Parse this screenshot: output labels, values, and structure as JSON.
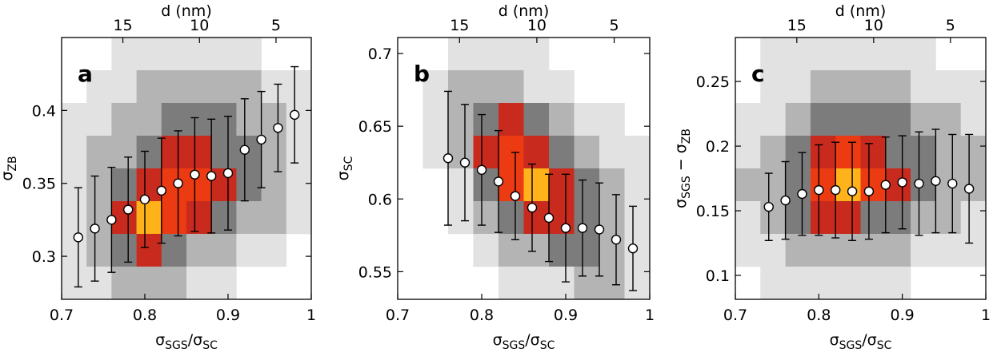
{
  "chart_data": [
    {
      "type": "scatter",
      "panel_label": "a",
      "x": [
        0.72,
        0.74,
        0.76,
        0.78,
        0.8,
        0.82,
        0.84,
        0.86,
        0.88,
        0.9,
        0.92,
        0.94,
        0.96,
        0.98
      ],
      "values": [
        0.313,
        0.319,
        0.325,
        0.332,
        0.339,
        0.345,
        0.35,
        0.356,
        0.355,
        0.357,
        0.373,
        0.38,
        0.388,
        0.397
      ],
      "errors": [
        0.034,
        0.036,
        0.036,
        0.036,
        0.033,
        0.036,
        0.036,
        0.039,
        0.039,
        0.039,
        0.035,
        0.033,
        0.03,
        0.033
      ],
      "color": "#000000",
      "marker_fill": "#ffffff",
      "xlim": [
        0.7,
        1
      ],
      "xticks": [
        0.7,
        0.8,
        0.9,
        1
      ],
      "ylim": [
        0.2705,
        0.45
      ],
      "yticks": [
        0.3,
        0.35,
        0.4
      ],
      "x2lim": [
        19,
        2.7
      ],
      "x2ticks": [
        15,
        10,
        5
      ],
      "x2label": "d (nm)",
      "xlabel": [
        "σ",
        "SGS",
        "/σ",
        "SC"
      ],
      "ylabel": [
        "σ",
        "ZB"
      ],
      "cmap": [
        "#ffffff",
        "#e2e2e2",
        "#b4b4b4",
        "#7c7c7c",
        "#c82a1e",
        "#ec3a12",
        "#ffb21a"
      ],
      "density": [
        [
          0,
          0,
          1,
          1,
          1,
          1,
          1,
          1,
          0,
          0
        ],
        [
          0,
          1,
          1,
          2,
          2,
          2,
          2,
          2,
          1,
          1
        ],
        [
          1,
          1,
          2,
          2,
          3,
          3,
          3,
          2,
          2,
          1
        ],
        [
          1,
          2,
          2,
          3,
          4,
          4,
          3,
          3,
          2,
          1
        ],
        [
          1,
          2,
          3,
          4,
          5,
          5,
          4,
          3,
          2,
          1
        ],
        [
          1,
          2,
          4,
          6,
          5,
          4,
          3,
          2,
          2,
          1
        ],
        [
          1,
          2,
          3,
          4,
          3,
          2,
          2,
          1,
          1,
          0
        ],
        [
          1,
          1,
          2,
          2,
          2,
          1,
          1,
          0,
          0,
          0
        ]
      ]
    },
    {
      "type": "scatter",
      "panel_label": "b",
      "x": [
        0.76,
        0.78,
        0.8,
        0.82,
        0.84,
        0.86,
        0.88,
        0.9,
        0.92,
        0.94,
        0.96,
        0.98
      ],
      "values": [
        0.628,
        0.625,
        0.62,
        0.612,
        0.602,
        0.594,
        0.587,
        0.58,
        0.58,
        0.579,
        0.572,
        0.566
      ],
      "errors": [
        0.046,
        0.04,
        0.038,
        0.035,
        0.03,
        0.03,
        0.03,
        0.037,
        0.033,
        0.032,
        0.031,
        0.029
      ],
      "color": "#000000",
      "marker_fill": "#ffffff",
      "xlim": [
        0.7,
        1
      ],
      "xticks": [
        0.7,
        0.8,
        0.9,
        1
      ],
      "ylim": [
        0.531,
        0.711
      ],
      "yticks": [
        0.55,
        0.6,
        0.65,
        0.7
      ],
      "x2lim": [
        19,
        2.7
      ],
      "x2ticks": [
        15,
        10,
        5
      ],
      "x2label": "d (nm)",
      "xlabel": [
        "σ",
        "SGS",
        "/σ",
        "SC"
      ],
      "ylabel": [
        "σ",
        "SC"
      ],
      "cmap": [
        "#ffffff",
        "#e2e2e2",
        "#b4b4b4",
        "#7c7c7c",
        "#c82a1e",
        "#ec3a12",
        "#ffb21a"
      ],
      "density": [
        [
          0,
          0,
          1,
          1,
          1,
          1,
          0,
          0,
          0,
          0
        ],
        [
          0,
          1,
          2,
          2,
          2,
          1,
          1,
          0,
          0,
          0
        ],
        [
          0,
          1,
          2,
          3,
          4,
          3,
          2,
          1,
          1,
          0
        ],
        [
          0,
          1,
          2,
          4,
          5,
          4,
          3,
          2,
          1,
          1
        ],
        [
          0,
          0,
          1,
          3,
          5,
          6,
          4,
          3,
          2,
          1
        ],
        [
          0,
          0,
          1,
          2,
          3,
          4,
          4,
          3,
          2,
          1
        ],
        [
          0,
          0,
          0,
          1,
          2,
          2,
          3,
          3,
          2,
          1
        ],
        [
          0,
          0,
          0,
          0,
          1,
          1,
          1,
          2,
          2,
          1
        ]
      ]
    },
    {
      "type": "scatter",
      "panel_label": "c",
      "x": [
        0.74,
        0.76,
        0.78,
        0.8,
        0.82,
        0.84,
        0.86,
        0.88,
        0.9,
        0.92,
        0.94,
        0.96,
        0.98
      ],
      "values": [
        0.153,
        0.158,
        0.163,
        0.166,
        0.166,
        0.165,
        0.165,
        0.17,
        0.172,
        0.171,
        0.173,
        0.171,
        0.167
      ],
      "errors": [
        0.026,
        0.03,
        0.032,
        0.035,
        0.037,
        0.038,
        0.037,
        0.037,
        0.036,
        0.04,
        0.04,
        0.038,
        0.042
      ],
      "color": "#000000",
      "marker_fill": "#ffffff",
      "xlim": [
        0.7,
        1
      ],
      "xticks": [
        0.7,
        0.8,
        0.9,
        1
      ],
      "ylim": [
        0.0815,
        0.284
      ],
      "yticks": [
        0.1,
        0.15,
        0.2,
        0.25
      ],
      "x2lim": [
        19,
        2.7
      ],
      "x2ticks": [
        15,
        10,
        5
      ],
      "x2label": "d (nm)",
      "xlabel": [
        "σ",
        "SGS",
        "/σ",
        "SC"
      ],
      "ylabel": [
        "σ",
        "SGS",
        " − σ",
        "ZB"
      ],
      "cmap": [
        "#ffffff",
        "#e2e2e2",
        "#b4b4b4",
        "#7c7c7c",
        "#c82a1e",
        "#ec3a12",
        "#ffb21a"
      ],
      "density": [
        [
          0,
          1,
          1,
          1,
          1,
          1,
          1,
          1,
          0,
          0
        ],
        [
          0,
          1,
          1,
          2,
          2,
          2,
          2,
          1,
          1,
          1
        ],
        [
          1,
          1,
          2,
          3,
          3,
          3,
          3,
          2,
          2,
          1
        ],
        [
          1,
          2,
          3,
          4,
          5,
          4,
          3,
          3,
          2,
          2
        ],
        [
          2,
          2,
          3,
          5,
          6,
          5,
          4,
          3,
          2,
          2
        ],
        [
          1,
          2,
          3,
          4,
          4,
          3,
          3,
          2,
          2,
          1
        ],
        [
          1,
          1,
          2,
          2,
          2,
          2,
          2,
          1,
          1,
          1
        ],
        [
          0,
          1,
          1,
          1,
          1,
          1,
          1,
          0,
          0,
          0
        ]
      ]
    }
  ]
}
